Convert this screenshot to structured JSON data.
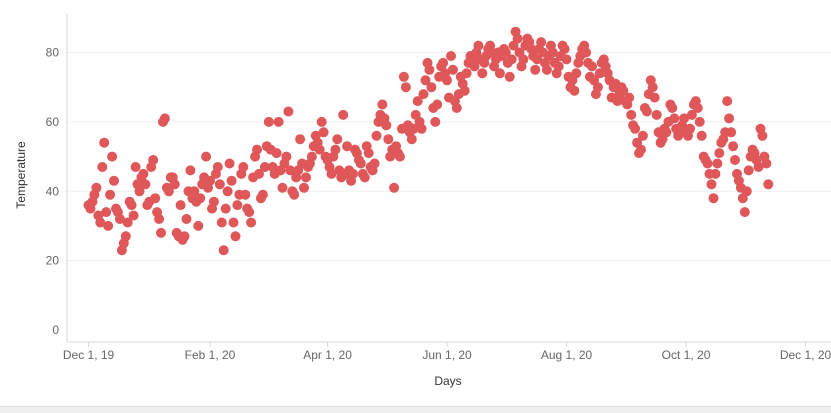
{
  "chart_data": {
    "type": "scatter",
    "xlabel": "Days",
    "ylabel": "Temperature",
    "x_range": [
      "2019-11-20",
      "2020-12-14"
    ],
    "ylim": [
      0,
      90
    ],
    "yticks": [
      0,
      20,
      40,
      60,
      80
    ],
    "xticks": [
      {
        "date": "2019-12-01",
        "label": "Dec 1, 19"
      },
      {
        "date": "2020-02-01",
        "label": "Feb 1, 20"
      },
      {
        "date": "2020-04-01",
        "label": "Apr 1, 20"
      },
      {
        "date": "2020-06-01",
        "label": "Jun 1, 20"
      },
      {
        "date": "2020-08-01",
        "label": "Aug 1, 20"
      },
      {
        "date": "2020-10-01",
        "label": "Oct 1, 20"
      },
      {
        "date": "2020-12-01",
        "label": "Dec 1, 20"
      }
    ],
    "grid": true,
    "color": "#e05759",
    "points": [
      [
        "2019-12-01",
        36
      ],
      [
        "2019-12-02",
        35
      ],
      [
        "2019-12-03",
        37
      ],
      [
        "2019-12-04",
        39
      ],
      [
        "2019-12-05",
        41
      ],
      [
        "2019-12-06",
        33
      ],
      [
        "2019-12-07",
        31
      ],
      [
        "2019-12-08",
        47
      ],
      [
        "2019-12-09",
        54
      ],
      [
        "2019-12-10",
        34
      ],
      [
        "2019-12-11",
        30
      ],
      [
        "2019-12-12",
        39
      ],
      [
        "2019-12-13",
        50
      ],
      [
        "2019-12-14",
        43
      ],
      [
        "2019-12-15",
        35
      ],
      [
        "2019-12-16",
        34
      ],
      [
        "2019-12-17",
        32
      ],
      [
        "2019-12-18",
        23
      ],
      [
        "2019-12-19",
        25
      ],
      [
        "2019-12-20",
        27
      ],
      [
        "2019-12-21",
        31
      ],
      [
        "2019-12-22",
        37
      ],
      [
        "2019-12-23",
        36
      ],
      [
        "2019-12-24",
        33
      ],
      [
        "2019-12-25",
        47
      ],
      [
        "2019-12-26",
        42
      ],
      [
        "2019-12-27",
        40
      ],
      [
        "2019-12-28",
        44
      ],
      [
        "2019-12-29",
        45
      ],
      [
        "2019-12-30",
        42
      ],
      [
        "2019-12-31",
        36
      ],
      [
        "2020-01-01",
        37
      ],
      [
        "2020-01-02",
        47
      ],
      [
        "2020-01-03",
        49
      ],
      [
        "2020-01-04",
        38
      ],
      [
        "2020-01-05",
        34
      ],
      [
        "2020-01-06",
        32
      ],
      [
        "2020-01-07",
        28
      ],
      [
        "2020-01-08",
        60
      ],
      [
        "2020-01-09",
        61
      ],
      [
        "2020-01-10",
        41
      ],
      [
        "2020-01-11",
        40
      ],
      [
        "2020-01-12",
        44
      ],
      [
        "2020-01-13",
        44
      ],
      [
        "2020-01-14",
        42
      ],
      [
        "2020-01-15",
        28
      ],
      [
        "2020-01-16",
        27
      ],
      [
        "2020-01-17",
        36
      ],
      [
        "2020-01-18",
        26
      ],
      [
        "2020-01-19",
        27
      ],
      [
        "2020-01-20",
        32
      ],
      [
        "2020-01-21",
        40
      ],
      [
        "2020-01-22",
        46
      ],
      [
        "2020-01-23",
        38
      ],
      [
        "2020-01-24",
        40
      ],
      [
        "2020-01-25",
        37
      ],
      [
        "2020-01-26",
        30
      ],
      [
        "2020-01-27",
        38
      ],
      [
        "2020-01-28",
        42
      ],
      [
        "2020-01-29",
        44
      ],
      [
        "2020-01-30",
        50
      ],
      [
        "2020-01-31",
        41
      ],
      [
        "2020-02-01",
        43
      ],
      [
        "2020-02-02",
        35
      ],
      [
        "2020-02-03",
        37
      ],
      [
        "2020-02-04",
        45
      ],
      [
        "2020-02-05",
        47
      ],
      [
        "2020-02-06",
        42
      ],
      [
        "2020-02-07",
        31
      ],
      [
        "2020-02-08",
        23
      ],
      [
        "2020-02-09",
        35
      ],
      [
        "2020-02-10",
        40
      ],
      [
        "2020-02-11",
        48
      ],
      [
        "2020-02-12",
        43
      ],
      [
        "2020-02-13",
        31
      ],
      [
        "2020-02-14",
        27
      ],
      [
        "2020-02-15",
        36
      ],
      [
        "2020-02-16",
        39
      ],
      [
        "2020-02-17",
        45
      ],
      [
        "2020-02-18",
        47
      ],
      [
        "2020-02-19",
        39
      ],
      [
        "2020-02-20",
        35
      ],
      [
        "2020-02-21",
        34
      ],
      [
        "2020-02-22",
        31
      ],
      [
        "2020-02-23",
        44
      ],
      [
        "2020-02-24",
        50
      ],
      [
        "2020-02-25",
        52
      ],
      [
        "2020-02-26",
        45
      ],
      [
        "2020-02-27",
        38
      ],
      [
        "2020-02-28",
        39
      ],
      [
        "2020-02-29",
        47
      ],
      [
        "2020-03-01",
        53
      ],
      [
        "2020-03-02",
        60
      ],
      [
        "2020-03-03",
        52
      ],
      [
        "2020-03-04",
        47
      ],
      [
        "2020-03-05",
        45
      ],
      [
        "2020-03-06",
        51
      ],
      [
        "2020-03-07",
        60
      ],
      [
        "2020-03-08",
        46
      ],
      [
        "2020-03-09",
        41
      ],
      [
        "2020-03-10",
        48
      ],
      [
        "2020-03-11",
        50
      ],
      [
        "2020-03-12",
        63
      ],
      [
        "2020-03-13",
        46
      ],
      [
        "2020-03-14",
        40
      ],
      [
        "2020-03-15",
        39
      ],
      [
        "2020-03-16",
        44
      ],
      [
        "2020-03-17",
        46
      ],
      [
        "2020-03-18",
        55
      ],
      [
        "2020-03-19",
        48
      ],
      [
        "2020-03-20",
        41
      ],
      [
        "2020-03-21",
        44
      ],
      [
        "2020-03-22",
        47
      ],
      [
        "2020-03-23",
        48
      ],
      [
        "2020-03-24",
        50
      ],
      [
        "2020-03-25",
        53
      ],
      [
        "2020-03-26",
        56
      ],
      [
        "2020-03-27",
        54
      ],
      [
        "2020-03-28",
        52
      ],
      [
        "2020-03-29",
        60
      ],
      [
        "2020-03-30",
        57
      ],
      [
        "2020-03-31",
        50
      ],
      [
        "2020-04-01",
        49
      ],
      [
        "2020-04-02",
        47
      ],
      [
        "2020-04-03",
        45
      ],
      [
        "2020-04-04",
        50
      ],
      [
        "2020-04-05",
        52
      ],
      [
        "2020-04-06",
        55
      ],
      [
        "2020-04-07",
        46
      ],
      [
        "2020-04-08",
        44
      ],
      [
        "2020-04-09",
        62
      ],
      [
        "2020-04-10",
        45
      ],
      [
        "2020-04-11",
        53
      ],
      [
        "2020-04-12",
        46
      ],
      [
        "2020-04-13",
        43
      ],
      [
        "2020-04-14",
        45
      ],
      [
        "2020-04-15",
        52
      ],
      [
        "2020-04-16",
        51
      ],
      [
        "2020-04-17",
        49
      ],
      [
        "2020-04-18",
        48
      ],
      [
        "2020-04-19",
        45
      ],
      [
        "2020-04-20",
        44
      ],
      [
        "2020-04-21",
        53
      ],
      [
        "2020-04-22",
        51
      ],
      [
        "2020-04-23",
        47
      ],
      [
        "2020-04-24",
        46
      ],
      [
        "2020-04-25",
        48
      ],
      [
        "2020-04-26",
        56
      ],
      [
        "2020-04-27",
        60
      ],
      [
        "2020-04-28",
        62
      ],
      [
        "2020-04-29",
        65
      ],
      [
        "2020-04-30",
        61
      ],
      [
        "2020-05-01",
        59
      ],
      [
        "2020-05-02",
        55
      ],
      [
        "2020-05-03",
        50
      ],
      [
        "2020-05-04",
        52
      ],
      [
        "2020-05-05",
        41
      ],
      [
        "2020-05-06",
        53
      ],
      [
        "2020-05-07",
        51
      ],
      [
        "2020-05-08",
        50
      ],
      [
        "2020-05-09",
        58
      ],
      [
        "2020-05-10",
        73
      ],
      [
        "2020-05-11",
        70
      ],
      [
        "2020-05-12",
        59
      ],
      [
        "2020-05-13",
        57
      ],
      [
        "2020-05-14",
        55
      ],
      [
        "2020-05-15",
        58
      ],
      [
        "2020-05-16",
        62
      ],
      [
        "2020-05-17",
        66
      ],
      [
        "2020-05-18",
        60
      ],
      [
        "2020-05-19",
        58
      ],
      [
        "2020-05-20",
        68
      ],
      [
        "2020-05-21",
        72
      ],
      [
        "2020-05-22",
        77
      ],
      [
        "2020-05-23",
        75
      ],
      [
        "2020-05-24",
        70
      ],
      [
        "2020-05-25",
        64
      ],
      [
        "2020-05-26",
        60
      ],
      [
        "2020-05-27",
        65
      ],
      [
        "2020-05-28",
        73
      ],
      [
        "2020-05-29",
        76
      ],
      [
        "2020-05-30",
        77
      ],
      [
        "2020-05-31",
        74
      ],
      [
        "2020-06-01",
        72
      ],
      [
        "2020-06-02",
        67
      ],
      [
        "2020-06-03",
        79
      ],
      [
        "2020-06-04",
        75
      ],
      [
        "2020-06-05",
        66
      ],
      [
        "2020-06-06",
        64
      ],
      [
        "2020-06-07",
        68
      ],
      [
        "2020-06-08",
        73
      ],
      [
        "2020-06-09",
        71
      ],
      [
        "2020-06-10",
        69
      ],
      [
        "2020-06-11",
        74
      ],
      [
        "2020-06-12",
        77
      ],
      [
        "2020-06-13",
        79
      ],
      [
        "2020-06-14",
        78
      ],
      [
        "2020-06-15",
        76
      ],
      [
        "2020-06-16",
        80
      ],
      [
        "2020-06-17",
        82
      ],
      [
        "2020-06-18",
        78
      ],
      [
        "2020-06-19",
        74
      ],
      [
        "2020-06-20",
        77
      ],
      [
        "2020-06-21",
        79
      ],
      [
        "2020-06-22",
        81
      ],
      [
        "2020-06-23",
        82
      ],
      [
        "2020-06-24",
        80
      ],
      [
        "2020-06-25",
        76
      ],
      [
        "2020-06-26",
        78
      ],
      [
        "2020-06-27",
        80
      ],
      [
        "2020-06-28",
        74
      ],
      [
        "2020-06-29",
        79
      ],
      [
        "2020-06-30",
        81
      ],
      [
        "2020-07-01",
        80
      ],
      [
        "2020-07-02",
        77
      ],
      [
        "2020-07-03",
        73
      ],
      [
        "2020-07-04",
        78
      ],
      [
        "2020-07-05",
        82
      ],
      [
        "2020-07-06",
        86
      ],
      [
        "2020-07-07",
        84
      ],
      [
        "2020-07-08",
        80
      ],
      [
        "2020-07-09",
        76
      ],
      [
        "2020-07-10",
        78
      ],
      [
        "2020-07-11",
        82
      ],
      [
        "2020-07-12",
        84
      ],
      [
        "2020-07-13",
        83
      ],
      [
        "2020-07-14",
        81
      ],
      [
        "2020-07-15",
        79
      ],
      [
        "2020-07-16",
        75
      ],
      [
        "2020-07-17",
        78
      ],
      [
        "2020-07-18",
        81
      ],
      [
        "2020-07-19",
        83
      ],
      [
        "2020-07-20",
        80
      ],
      [
        "2020-07-21",
        77
      ],
      [
        "2020-07-22",
        75
      ],
      [
        "2020-07-23",
        79
      ],
      [
        "2020-07-24",
        82
      ],
      [
        "2020-07-25",
        80
      ],
      [
        "2020-07-26",
        77
      ],
      [
        "2020-07-27",
        74
      ],
      [
        "2020-07-28",
        76
      ],
      [
        "2020-07-29",
        79
      ],
      [
        "2020-07-30",
        82
      ],
      [
        "2020-07-31",
        81
      ],
      [
        "2020-08-01",
        78
      ],
      [
        "2020-08-02",
        73
      ],
      [
        "2020-08-03",
        70
      ],
      [
        "2020-08-04",
        72
      ],
      [
        "2020-08-05",
        69
      ],
      [
        "2020-08-06",
        74
      ],
      [
        "2020-08-07",
        77
      ],
      [
        "2020-08-08",
        79
      ],
      [
        "2020-08-09",
        81
      ],
      [
        "2020-08-10",
        82
      ],
      [
        "2020-08-11",
        80
      ],
      [
        "2020-08-12",
        77
      ],
      [
        "2020-08-13",
        73
      ],
      [
        "2020-08-14",
        76
      ],
      [
        "2020-08-15",
        72
      ],
      [
        "2020-08-16",
        68
      ],
      [
        "2020-08-17",
        70
      ],
      [
        "2020-08-18",
        74
      ],
      [
        "2020-08-19",
        77
      ],
      [
        "2020-08-20",
        78
      ],
      [
        "2020-08-21",
        76
      ],
      [
        "2020-08-22",
        74
      ],
      [
        "2020-08-23",
        72
      ],
      [
        "2020-08-24",
        67
      ],
      [
        "2020-08-25",
        70
      ],
      [
        "2020-08-26",
        71
      ],
      [
        "2020-08-27",
        66
      ],
      [
        "2020-08-28",
        68
      ],
      [
        "2020-08-29",
        70
      ],
      [
        "2020-08-30",
        69
      ],
      [
        "2020-08-31",
        66
      ],
      [
        "2020-09-01",
        65
      ],
      [
        "2020-09-02",
        67
      ],
      [
        "2020-09-03",
        62
      ],
      [
        "2020-09-04",
        59
      ],
      [
        "2020-09-05",
        58
      ],
      [
        "2020-09-06",
        54
      ],
      [
        "2020-09-07",
        51
      ],
      [
        "2020-09-08",
        52
      ],
      [
        "2020-09-09",
        56
      ],
      [
        "2020-09-10",
        64
      ],
      [
        "2020-09-11",
        63
      ],
      [
        "2020-09-12",
        68
      ],
      [
        "2020-09-13",
        72
      ],
      [
        "2020-09-14",
        70
      ],
      [
        "2020-09-15",
        67
      ],
      [
        "2020-09-16",
        62
      ],
      [
        "2020-09-17",
        57
      ],
      [
        "2020-09-18",
        54
      ],
      [
        "2020-09-19",
        55
      ],
      [
        "2020-09-20",
        58
      ],
      [
        "2020-09-21",
        57
      ],
      [
        "2020-09-22",
        60
      ],
      [
        "2020-09-23",
        65
      ],
      [
        "2020-09-24",
        64
      ],
      [
        "2020-09-25",
        61
      ],
      [
        "2020-09-26",
        58
      ],
      [
        "2020-09-27",
        56
      ],
      [
        "2020-09-28",
        57
      ],
      [
        "2020-09-29",
        59
      ],
      [
        "2020-09-30",
        61
      ],
      [
        "2020-10-01",
        57
      ],
      [
        "2020-10-02",
        56
      ],
      [
        "2020-10-03",
        58
      ],
      [
        "2020-10-04",
        62
      ],
      [
        "2020-10-05",
        65
      ],
      [
        "2020-10-06",
        66
      ],
      [
        "2020-10-07",
        64
      ],
      [
        "2020-10-08",
        60
      ],
      [
        "2020-10-09",
        56
      ],
      [
        "2020-10-10",
        50
      ],
      [
        "2020-10-11",
        49
      ],
      [
        "2020-10-12",
        48
      ],
      [
        "2020-10-13",
        45
      ],
      [
        "2020-10-14",
        42
      ],
      [
        "2020-10-15",
        38
      ],
      [
        "2020-10-16",
        45
      ],
      [
        "2020-10-17",
        48
      ],
      [
        "2020-10-18",
        51
      ],
      [
        "2020-10-19",
        54
      ],
      [
        "2020-10-20",
        55
      ],
      [
        "2020-10-21",
        57
      ],
      [
        "2020-10-22",
        66
      ],
      [
        "2020-10-23",
        61
      ],
      [
        "2020-10-24",
        57
      ],
      [
        "2020-10-25",
        53
      ],
      [
        "2020-10-26",
        49
      ],
      [
        "2020-10-27",
        45
      ],
      [
        "2020-10-28",
        43
      ],
      [
        "2020-10-29",
        41
      ],
      [
        "2020-10-30",
        38
      ],
      [
        "2020-10-31",
        34
      ],
      [
        "2020-11-01",
        40
      ],
      [
        "2020-11-02",
        46
      ],
      [
        "2020-11-03",
        50
      ],
      [
        "2020-11-04",
        52
      ],
      [
        "2020-11-05",
        51
      ],
      [
        "2020-11-06",
        49
      ],
      [
        "2020-11-07",
        47
      ],
      [
        "2020-11-08",
        58
      ],
      [
        "2020-11-09",
        56
      ],
      [
        "2020-11-10",
        50
      ],
      [
        "2020-11-11",
        48
      ],
      [
        "2020-11-12",
        42
      ]
    ]
  }
}
